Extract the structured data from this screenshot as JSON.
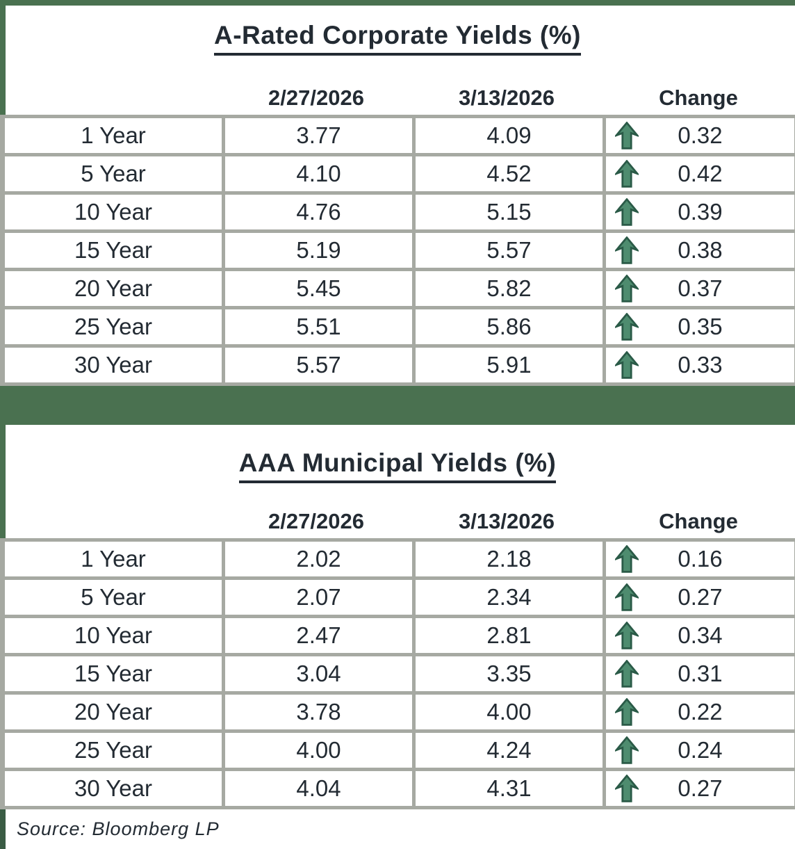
{
  "report": {
    "source_note": "Source: Bloomberg LP"
  },
  "colors": {
    "green_bar": "#4A7150",
    "green_dark": "#3A5C44",
    "border_gray": "#A6A9A2",
    "text": "#232B33",
    "arrow_fill": "#4E8C6F",
    "arrow_outline": "#2A5A47"
  },
  "tables": [
    {
      "title": "A-Rated Corporate Yields (%)",
      "column_headers": [
        "2/27/2026",
        "3/13/2026",
        "Change"
      ],
      "rows": [
        {
          "maturity": "1 Year",
          "prev": "3.77",
          "curr": "4.09",
          "direction": "up",
          "change": "0.32"
        },
        {
          "maturity": "5 Year",
          "prev": "4.10",
          "curr": "4.52",
          "direction": "up",
          "change": "0.42"
        },
        {
          "maturity": "10 Year",
          "prev": "4.76",
          "curr": "5.15",
          "direction": "up",
          "change": "0.39"
        },
        {
          "maturity": "15 Year",
          "prev": "5.19",
          "curr": "5.57",
          "direction": "up",
          "change": "0.38"
        },
        {
          "maturity": "20 Year",
          "prev": "5.45",
          "curr": "5.82",
          "direction": "up",
          "change": "0.37"
        },
        {
          "maturity": "25 Year",
          "prev": "5.51",
          "curr": "5.86",
          "direction": "up",
          "change": "0.35"
        },
        {
          "maturity": "30 Year",
          "prev": "5.57",
          "curr": "5.91",
          "direction": "up",
          "change": "0.33"
        }
      ]
    },
    {
      "title": "AAA Municipal Yields (%)",
      "column_headers": [
        "2/27/2026",
        "3/13/2026",
        "Change"
      ],
      "rows": [
        {
          "maturity": "1 Year",
          "prev": "2.02",
          "curr": "2.18",
          "direction": "up",
          "change": "0.16"
        },
        {
          "maturity": "5 Year",
          "prev": "2.07",
          "curr": "2.34",
          "direction": "up",
          "change": "0.27"
        },
        {
          "maturity": "10 Year",
          "prev": "2.47",
          "curr": "2.81",
          "direction": "up",
          "change": "0.34"
        },
        {
          "maturity": "15 Year",
          "prev": "3.04",
          "curr": "3.35",
          "direction": "up",
          "change": "0.31"
        },
        {
          "maturity": "20 Year",
          "prev": "3.78",
          "curr": "4.00",
          "direction": "up",
          "change": "0.22"
        },
        {
          "maturity": "25 Year",
          "prev": "4.00",
          "curr": "4.24",
          "direction": "up",
          "change": "0.24"
        },
        {
          "maturity": "30 Year",
          "prev": "4.04",
          "curr": "4.31",
          "direction": "up",
          "change": "0.27"
        }
      ]
    }
  ]
}
